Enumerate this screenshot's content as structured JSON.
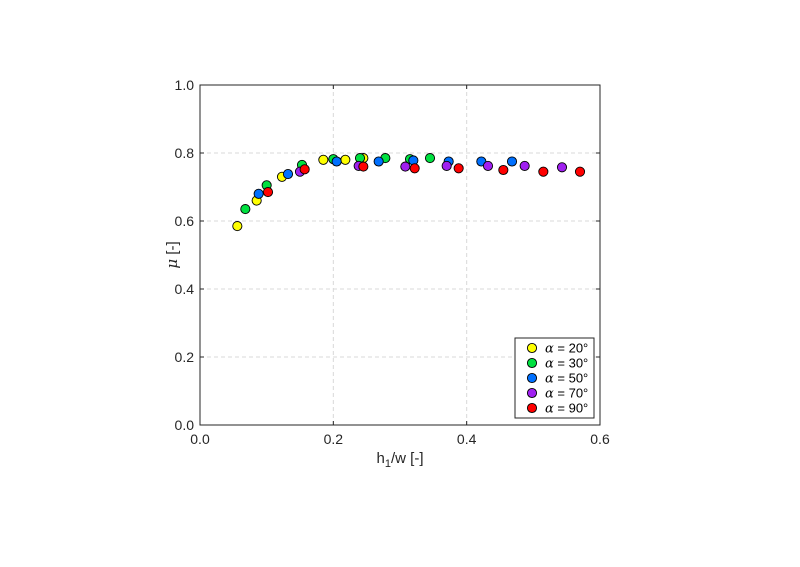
{
  "chart_data": {
    "type": "scatter",
    "xlabel": {
      "main": "h",
      "sub": "1",
      "rest": "/w [-]"
    },
    "ylabel": {
      "symbol": "μ",
      "rest": " [-]"
    },
    "xlim": [
      0,
      0.6
    ],
    "ylim": [
      0,
      1.0
    ],
    "xticks": [
      "0.0",
      "0.2",
      "0.4",
      "0.6"
    ],
    "yticks": [
      "0.0",
      "0.2",
      "0.4",
      "0.6",
      "0.8",
      "1.0"
    ],
    "grid": true,
    "legend_position": "bottom-right",
    "series": [
      {
        "name": "α = 20°",
        "greek": "α",
        "label_rest": " = 20°",
        "color": "#ffff00",
        "points": [
          [
            0.056,
            0.585
          ],
          [
            0.085,
            0.66
          ],
          [
            0.123,
            0.73
          ],
          [
            0.185,
            0.78
          ],
          [
            0.218,
            0.78
          ],
          [
            0.245,
            0.785
          ]
        ]
      },
      {
        "name": "α = 30°",
        "greek": "α",
        "label_rest": " = 30°",
        "color": "#00e040",
        "points": [
          [
            0.068,
            0.635
          ],
          [
            0.1,
            0.705
          ],
          [
            0.153,
            0.765
          ],
          [
            0.2,
            0.782
          ],
          [
            0.24,
            0.785
          ],
          [
            0.278,
            0.785
          ],
          [
            0.315,
            0.782
          ],
          [
            0.345,
            0.785
          ]
        ]
      },
      {
        "name": "α = 50°",
        "greek": "α",
        "label_rest": " = 50°",
        "color": "#0070ff",
        "points": [
          [
            0.088,
            0.68
          ],
          [
            0.132,
            0.738
          ],
          [
            0.205,
            0.775
          ],
          [
            0.268,
            0.775
          ],
          [
            0.32,
            0.778
          ],
          [
            0.373,
            0.775
          ],
          [
            0.422,
            0.775
          ],
          [
            0.468,
            0.775
          ]
        ]
      },
      {
        "name": "α = 70°",
        "greek": "α",
        "label_rest": " = 70°",
        "color": "#a020f0",
        "points": [
          [
            0.15,
            0.745
          ],
          [
            0.238,
            0.762
          ],
          [
            0.308,
            0.76
          ],
          [
            0.37,
            0.762
          ],
          [
            0.432,
            0.762
          ],
          [
            0.487,
            0.762
          ],
          [
            0.543,
            0.758
          ]
        ]
      },
      {
        "name": "α = 90°",
        "greek": "α",
        "label_rest": " = 90°",
        "color": "#ff0000",
        "points": [
          [
            0.102,
            0.685
          ],
          [
            0.157,
            0.752
          ],
          [
            0.245,
            0.76
          ],
          [
            0.322,
            0.755
          ],
          [
            0.388,
            0.755
          ],
          [
            0.455,
            0.75
          ],
          [
            0.515,
            0.745
          ],
          [
            0.57,
            0.745
          ]
        ]
      }
    ]
  }
}
